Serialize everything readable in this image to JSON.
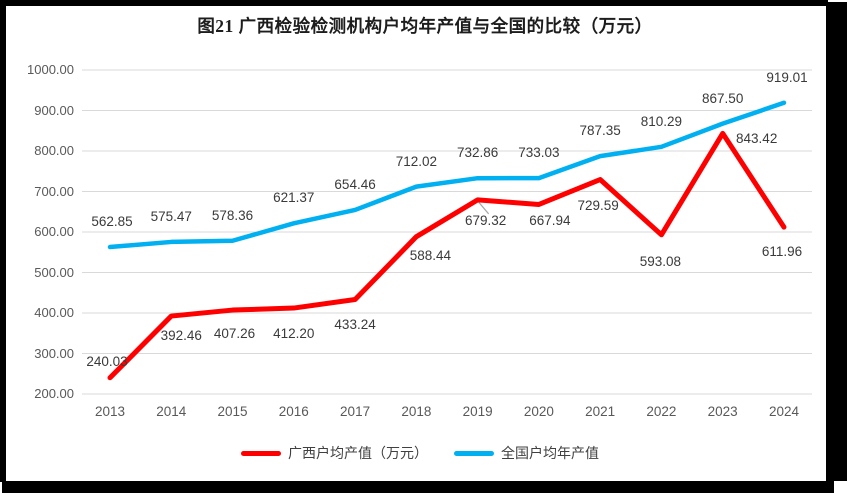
{
  "title": "图21 广西检验检测机构户均年产值与全国的比较（万元）",
  "chart_data": {
    "type": "line",
    "categories": [
      "2013",
      "2014",
      "2015",
      "2016",
      "2017",
      "2018",
      "2019",
      "2020",
      "2021",
      "2022",
      "2023",
      "2024"
    ],
    "series": [
      {
        "name": "广西户均产值（万元）",
        "color": "#fe0000",
        "values": [
          240.03,
          392.46,
          407.26,
          412.2,
          433.24,
          588.44,
          679.32,
          667.94,
          729.59,
          593.08,
          843.42,
          611.96
        ]
      },
      {
        "name": "全国户均年产值",
        "color": "#00b0f0",
        "values": [
          562.85,
          575.47,
          578.36,
          621.37,
          654.46,
          712.02,
          732.86,
          733.03,
          787.35,
          810.29,
          867.5,
          919.01
        ]
      }
    ],
    "title": "图21 广西检验检测机构户均年产值与全国的比较（万元）",
    "xlabel": "",
    "ylabel": "",
    "ylim": [
      200,
      1000
    ],
    "ytick_step": 100,
    "ytick_labels": [
      "200.00",
      "300.00",
      "400.00",
      "500.00",
      "600.00",
      "700.00",
      "800.00",
      "900.00",
      "1000.00"
    ],
    "grid": true,
    "legend_position": "bottom",
    "data_labels_visible": true,
    "label_decimals": 2,
    "label_offsets": [
      [
        [
          -3,
          -16
        ],
        [
          10,
          20
        ],
        [
          2,
          24
        ],
        [
          0,
          26
        ],
        [
          0,
          25
        ],
        [
          14,
          19
        ],
        [
          8,
          21
        ],
        [
          11,
          17
        ],
        [
          -2,
          26
        ],
        [
          -1,
          27
        ],
        [
          34,
          6
        ],
        [
          -2,
          25
        ]
      ],
      [
        [
          2,
          -25
        ],
        [
          0,
          -25
        ],
        [
          0,
          -25
        ],
        [
          0,
          -25
        ],
        [
          0,
          -25
        ],
        [
          0,
          -25
        ],
        [
          0,
          -25
        ],
        [
          0,
          -25
        ],
        [
          0,
          -25
        ],
        [
          0,
          -25
        ],
        [
          0,
          -25
        ],
        [
          3,
          -25
        ]
      ]
    ],
    "leader_line": {
      "series": 0,
      "point_index": 6
    }
  },
  "legend": {
    "items": [
      {
        "label": "广西户均产值（万元）",
        "color": "#fe0000"
      },
      {
        "label": "全国户均年产值",
        "color": "#00b0f0"
      }
    ]
  },
  "colors": {
    "guangxi_line": "#fe0000",
    "national_line": "#00b0f0",
    "gridline": "#d9d9d9",
    "tick_text": "#595959",
    "data_label_text": "#3a3a3a",
    "leader": "#a6a6a6",
    "frame": "#000000"
  }
}
